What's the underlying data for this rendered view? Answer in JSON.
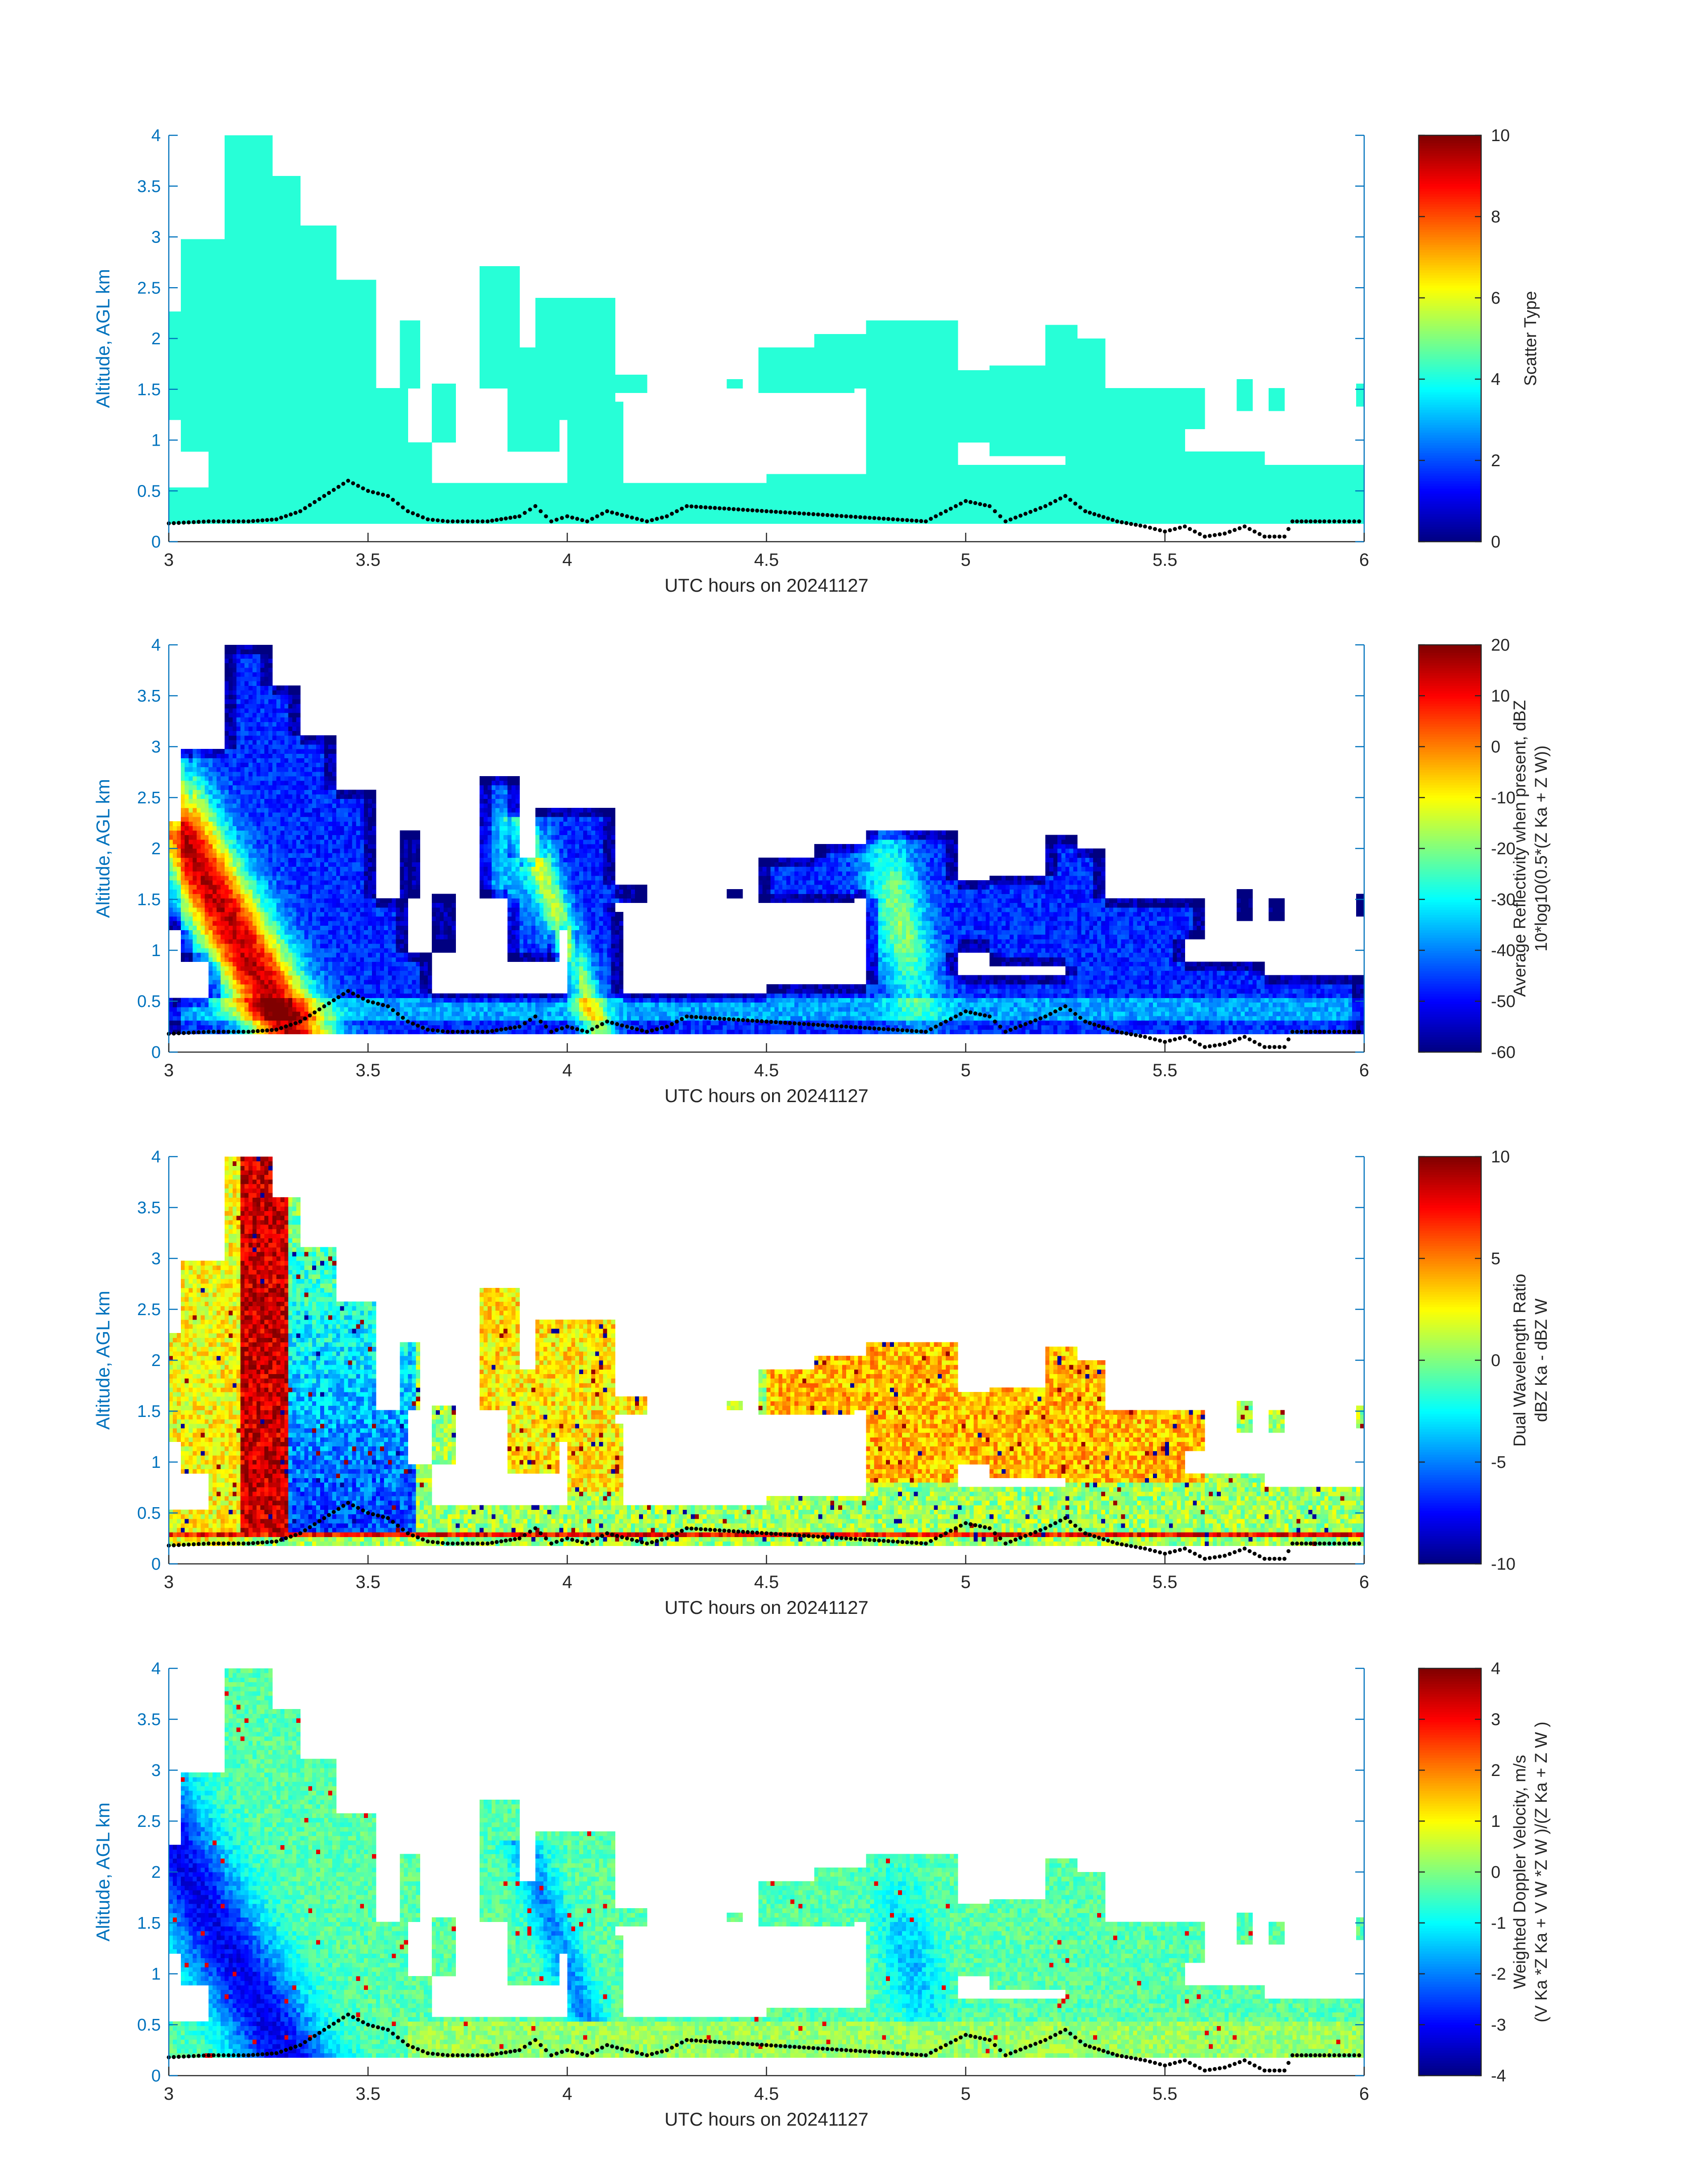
{
  "figure": {
    "xlabel": "UTC hours on 20241127",
    "ylabel": "Altitude, AGL km",
    "xlim": [
      3,
      6
    ],
    "ylim": [
      0,
      4
    ],
    "xticks": [
      3,
      3.5,
      4,
      4.5,
      5,
      5.5,
      6
    ],
    "xtick_labels": [
      "3",
      "3.5",
      "4",
      "4.5",
      "5",
      "5.5",
      "6"
    ],
    "yticks": [
      0,
      0.5,
      1,
      1.5,
      2,
      2.5,
      3,
      3.5,
      4
    ],
    "ytick_labels": [
      "0",
      "0.5",
      "1",
      "1.5",
      "2",
      "2.5",
      "3",
      "3.5",
      "4"
    ],
    "axis_color": "#0072BD",
    "colormap": "jet"
  },
  "chart_data": [
    {
      "type": "heatmap",
      "field": "scatter_type",
      "colorbar": {
        "label_lines": [
          "Scatter Type"
        ],
        "clim": [
          0,
          10
        ],
        "ticks": [
          0,
          2,
          4,
          6,
          8,
          10
        ]
      },
      "fill_value": 3.8,
      "notes": "Uniform scatter type value over all echo regions"
    },
    {
      "type": "heatmap",
      "field": "average_reflectivity",
      "colorbar": {
        "label_lines": [
          "Average Reflectivity when present, dBZ",
          "10*log10(0.5*(Z Ka + Z W))"
        ],
        "clim": [
          -60,
          20
        ],
        "ticks": [
          -60,
          -50,
          -40,
          -30,
          -20,
          -10,
          0,
          10,
          20
        ]
      }
    },
    {
      "type": "heatmap",
      "field": "dual_wavelength_ratio",
      "colorbar": {
        "label_lines": [
          "Dual Wavelength Ratio",
          "dBZ Ka - dBZ W"
        ],
        "clim": [
          -10,
          10
        ],
        "ticks": [
          -10,
          -5,
          0,
          5,
          10
        ]
      }
    },
    {
      "type": "heatmap",
      "field": "weighted_doppler_velocity",
      "colorbar": {
        "label_lines": [
          "Weighted Doppler Velocity, m/s",
          "(V Ka *Z Ka + V W *Z W )/(Z Ka + Z W )"
        ],
        "clim": [
          -4,
          4
        ],
        "ticks": [
          -4,
          -3,
          -2,
          -1,
          0,
          1,
          2,
          3,
          4
        ]
      }
    }
  ],
  "echo_regions": [
    {
      "t0": 3.0,
      "t1": 3.07,
      "z0": 1.2,
      "z1": 2.25
    },
    {
      "t0": 3.03,
      "t1": 3.14,
      "z0": 0.9,
      "z1": 3.0
    },
    {
      "t0": 3.1,
      "t1": 3.52,
      "z0": 0.2,
      "z1": 2.6
    },
    {
      "t0": 3.14,
      "t1": 3.26,
      "z0": 0.2,
      "z1": 4.0
    },
    {
      "t0": 3.26,
      "t1": 3.33,
      "z0": 0.2,
      "z1": 3.6
    },
    {
      "t0": 3.33,
      "t1": 3.42,
      "z0": 0.2,
      "z1": 3.1
    },
    {
      "t0": 3.42,
      "t1": 3.52,
      "z0": 0.3,
      "z1": 2.3
    },
    {
      "t0": 3.52,
      "t1": 3.6,
      "z0": 0.3,
      "z1": 1.5
    },
    {
      "t0": 3.6,
      "t1": 3.66,
      "z0": 0.3,
      "z1": 1.0
    },
    {
      "t0": 3.58,
      "t1": 3.63,
      "z0": 1.5,
      "z1": 2.2
    },
    {
      "t0": 3.66,
      "t1": 3.72,
      "z0": 1.0,
      "z1": 1.55
    },
    {
      "t0": 3.78,
      "t1": 3.88,
      "z0": 1.5,
      "z1": 2.7
    },
    {
      "t0": 3.85,
      "t1": 3.98,
      "z0": 0.9,
      "z1": 1.9
    },
    {
      "t0": 3.92,
      "t1": 4.12,
      "z0": 1.2,
      "z1": 2.4
    },
    {
      "t0": 4.0,
      "t1": 4.14,
      "z0": 0.3,
      "z1": 1.4
    },
    {
      "t0": 4.1,
      "t1": 4.2,
      "z0": 1.45,
      "z1": 1.65
    },
    {
      "t0": 4.4,
      "t1": 4.44,
      "z0": 1.5,
      "z1": 1.6
    },
    {
      "t0": 4.48,
      "t1": 4.72,
      "z0": 1.45,
      "z1": 1.9
    },
    {
      "t0": 4.62,
      "t1": 4.88,
      "z0": 1.5,
      "z1": 2.05
    },
    {
      "t0": 4.75,
      "t1": 4.98,
      "z0": 0.6,
      "z1": 2.2
    },
    {
      "t0": 4.98,
      "t1": 5.06,
      "z0": 1.0,
      "z1": 1.7
    },
    {
      "t0": 5.06,
      "t1": 5.3,
      "z0": 0.85,
      "z1": 1.75
    },
    {
      "t0": 5.2,
      "t1": 5.35,
      "z0": 0.9,
      "z1": 2.0
    },
    {
      "t0": 5.3,
      "t1": 5.55,
      "z0": 0.8,
      "z1": 1.5
    },
    {
      "t0": 5.5,
      "t1": 5.6,
      "z0": 1.1,
      "z1": 1.5
    },
    {
      "t0": 5.2,
      "t1": 5.28,
      "z0": 1.9,
      "z1": 2.15
    },
    {
      "t0": 5.68,
      "t1": 5.72,
      "z0": 1.3,
      "z1": 1.6
    },
    {
      "t0": 5.76,
      "t1": 5.8,
      "z0": 1.3,
      "z1": 1.5
    },
    {
      "t0": 5.98,
      "t1": 6.0,
      "z0": 1.35,
      "z1": 1.55
    },
    {
      "t0": 3.0,
      "t1": 3.6,
      "z0": 0.2,
      "z1": 0.55
    },
    {
      "t0": 3.6,
      "t1": 4.5,
      "z0": 0.2,
      "z1": 0.6
    },
    {
      "t0": 4.5,
      "t1": 4.75,
      "z0": 0.2,
      "z1": 0.65
    },
    {
      "t0": 4.75,
      "t1": 5.25,
      "z0": 0.2,
      "z1": 0.75
    },
    {
      "t0": 5.25,
      "t1": 5.75,
      "z0": 0.2,
      "z1": 0.9
    },
    {
      "t0": 5.75,
      "t1": 6.0,
      "z0": 0.2,
      "z1": 0.75
    }
  ],
  "surface_trace": {
    "t": [
      3.0,
      3.1,
      3.2,
      3.27,
      3.33,
      3.45,
      3.5,
      3.55,
      3.6,
      3.65,
      3.7,
      3.8,
      3.88,
      3.92,
      3.96,
      4.0,
      4.05,
      4.1,
      4.2,
      4.25,
      4.3,
      4.5,
      4.7,
      4.9,
      5.0,
      5.06,
      5.1,
      5.2,
      5.25,
      5.3,
      5.38,
      5.45,
      5.5,
      5.55,
      5.6,
      5.65,
      5.7,
      5.75,
      5.8,
      5.82,
      5.9,
      6.0
    ],
    "z": [
      0.18,
      0.2,
      0.2,
      0.22,
      0.3,
      0.6,
      0.5,
      0.45,
      0.3,
      0.22,
      0.2,
      0.2,
      0.25,
      0.35,
      0.2,
      0.25,
      0.2,
      0.3,
      0.2,
      0.25,
      0.35,
      0.3,
      0.25,
      0.2,
      0.4,
      0.35,
      0.2,
      0.35,
      0.45,
      0.3,
      0.2,
      0.15,
      0.1,
      0.15,
      0.05,
      0.08,
      0.15,
      0.05,
      0.05,
      0.2,
      0.2,
      0.2
    ]
  }
}
